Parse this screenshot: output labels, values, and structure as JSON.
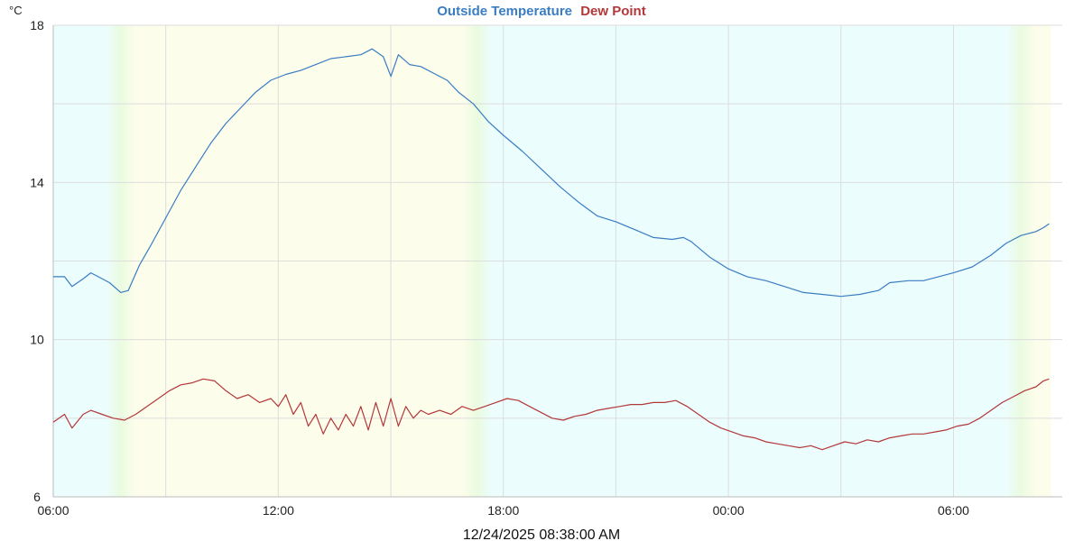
{
  "unit_label": "°C",
  "timestamp": "12/24/2025 08:38:00 AM",
  "colors": {
    "outside_temperature": "#3a7dc2",
    "dew_point": "#b2383a",
    "day_band": "#fdfdec",
    "night_band": "#ecfdfd",
    "grid": "#dddddd"
  },
  "chart_data": {
    "type": "line",
    "title": "",
    "xlabel": "",
    "ylabel": "°C",
    "x_domain_hours": [
      0,
      26.6
    ],
    "ylim": [
      6,
      18
    ],
    "y_ticks": [
      {
        "label": "6",
        "value": 6
      },
      {
        "label": "10",
        "value": 10
      },
      {
        "label": "14",
        "value": 14
      },
      {
        "label": "18",
        "value": 18
      }
    ],
    "x_ticks": [
      {
        "label": "06:00",
        "hour": 0
      },
      {
        "label": "12:00",
        "hour": 6
      },
      {
        "label": "18:00",
        "hour": 12
      },
      {
        "label": "00:00",
        "hour": 18
      },
      {
        "label": "06:00",
        "hour": 24
      }
    ],
    "grid": true,
    "legend_position": "top-center",
    "daylight_bands": [
      {
        "period": "night",
        "start_hour": 0,
        "end_hour": 1.4
      },
      {
        "period": "twilight",
        "start_hour": 1.4,
        "end_hour": 2.2
      },
      {
        "period": "day",
        "start_hour": 2.2,
        "end_hour": 10.9
      },
      {
        "period": "twilight",
        "start_hour": 10.9,
        "end_hour": 11.7
      },
      {
        "period": "night",
        "start_hour": 11.7,
        "end_hour": 25.4
      },
      {
        "period": "twilight",
        "start_hour": 25.4,
        "end_hour": 26.2
      },
      {
        "period": "day",
        "start_hour": 26.2,
        "end_hour": 26.6
      }
    ],
    "series": [
      {
        "name": "Outside Temperature",
        "color": "#3a7dc2",
        "points": [
          [
            0,
            11.6
          ],
          [
            0.3,
            11.6
          ],
          [
            0.5,
            11.35
          ],
          [
            0.8,
            11.55
          ],
          [
            1.0,
            11.7
          ],
          [
            1.2,
            11.6
          ],
          [
            1.5,
            11.45
          ],
          [
            1.8,
            11.2
          ],
          [
            2.0,
            11.25
          ],
          [
            2.3,
            11.9
          ],
          [
            2.6,
            12.4
          ],
          [
            3.0,
            13.1
          ],
          [
            3.4,
            13.8
          ],
          [
            3.8,
            14.4
          ],
          [
            4.2,
            15.0
          ],
          [
            4.6,
            15.5
          ],
          [
            5.0,
            15.9
          ],
          [
            5.4,
            16.3
          ],
          [
            5.8,
            16.6
          ],
          [
            6.2,
            16.75
          ],
          [
            6.6,
            16.85
          ],
          [
            7.0,
            17.0
          ],
          [
            7.4,
            17.15
          ],
          [
            7.8,
            17.2
          ],
          [
            8.2,
            17.25
          ],
          [
            8.5,
            17.4
          ],
          [
            8.8,
            17.2
          ],
          [
            9.0,
            16.7
          ],
          [
            9.2,
            17.25
          ],
          [
            9.5,
            17.0
          ],
          [
            9.8,
            16.95
          ],
          [
            10.2,
            16.75
          ],
          [
            10.5,
            16.6
          ],
          [
            10.8,
            16.3
          ],
          [
            11.2,
            16.0
          ],
          [
            11.6,
            15.55
          ],
          [
            12.0,
            15.2
          ],
          [
            12.5,
            14.8
          ],
          [
            13.0,
            14.35
          ],
          [
            13.5,
            13.9
          ],
          [
            14.0,
            13.5
          ],
          [
            14.5,
            13.15
          ],
          [
            15.0,
            13.0
          ],
          [
            15.5,
            12.8
          ],
          [
            16.0,
            12.6
          ],
          [
            16.5,
            12.55
          ],
          [
            16.8,
            12.6
          ],
          [
            17.0,
            12.5
          ],
          [
            17.5,
            12.1
          ],
          [
            18.0,
            11.8
          ],
          [
            18.5,
            11.6
          ],
          [
            19.0,
            11.5
          ],
          [
            19.5,
            11.35
          ],
          [
            20.0,
            11.2
          ],
          [
            20.5,
            11.15
          ],
          [
            21.0,
            11.1
          ],
          [
            21.5,
            11.15
          ],
          [
            22.0,
            11.25
          ],
          [
            22.3,
            11.45
          ],
          [
            22.8,
            11.5
          ],
          [
            23.2,
            11.5
          ],
          [
            23.6,
            11.6
          ],
          [
            24.0,
            11.7
          ],
          [
            24.5,
            11.85
          ],
          [
            25.0,
            12.15
          ],
          [
            25.4,
            12.45
          ],
          [
            25.8,
            12.65
          ],
          [
            26.2,
            12.75
          ],
          [
            26.4,
            12.85
          ],
          [
            26.55,
            12.95
          ]
        ]
      },
      {
        "name": "Dew Point",
        "color": "#b2383a",
        "points": [
          [
            0,
            7.9
          ],
          [
            0.3,
            8.1
          ],
          [
            0.5,
            7.75
          ],
          [
            0.8,
            8.1
          ],
          [
            1.0,
            8.2
          ],
          [
            1.3,
            8.1
          ],
          [
            1.6,
            8.0
          ],
          [
            1.9,
            7.95
          ],
          [
            2.2,
            8.1
          ],
          [
            2.5,
            8.3
          ],
          [
            2.8,
            8.5
          ],
          [
            3.1,
            8.7
          ],
          [
            3.4,
            8.85
          ],
          [
            3.7,
            8.9
          ],
          [
            4.0,
            9.0
          ],
          [
            4.3,
            8.95
          ],
          [
            4.6,
            8.7
          ],
          [
            4.9,
            8.5
          ],
          [
            5.2,
            8.6
          ],
          [
            5.5,
            8.4
          ],
          [
            5.8,
            8.5
          ],
          [
            6.0,
            8.3
          ],
          [
            6.2,
            8.6
          ],
          [
            6.4,
            8.1
          ],
          [
            6.6,
            8.4
          ],
          [
            6.8,
            7.8
          ],
          [
            7.0,
            8.1
          ],
          [
            7.2,
            7.6
          ],
          [
            7.4,
            8.0
          ],
          [
            7.6,
            7.7
          ],
          [
            7.8,
            8.1
          ],
          [
            8.0,
            7.8
          ],
          [
            8.2,
            8.3
          ],
          [
            8.4,
            7.7
          ],
          [
            8.6,
            8.4
          ],
          [
            8.8,
            7.8
          ],
          [
            9.0,
            8.5
          ],
          [
            9.2,
            7.8
          ],
          [
            9.4,
            8.3
          ],
          [
            9.6,
            8.0
          ],
          [
            9.8,
            8.2
          ],
          [
            10.0,
            8.1
          ],
          [
            10.3,
            8.2
          ],
          [
            10.6,
            8.1
          ],
          [
            10.9,
            8.3
          ],
          [
            11.2,
            8.2
          ],
          [
            11.5,
            8.3
          ],
          [
            11.8,
            8.4
          ],
          [
            12.1,
            8.5
          ],
          [
            12.4,
            8.45
          ],
          [
            12.7,
            8.3
          ],
          [
            13.0,
            8.15
          ],
          [
            13.3,
            8.0
          ],
          [
            13.6,
            7.95
          ],
          [
            13.9,
            8.05
          ],
          [
            14.2,
            8.1
          ],
          [
            14.5,
            8.2
          ],
          [
            14.8,
            8.25
          ],
          [
            15.1,
            8.3
          ],
          [
            15.4,
            8.35
          ],
          [
            15.7,
            8.35
          ],
          [
            16.0,
            8.4
          ],
          [
            16.3,
            8.4
          ],
          [
            16.6,
            8.45
          ],
          [
            16.9,
            8.3
          ],
          [
            17.2,
            8.1
          ],
          [
            17.5,
            7.9
          ],
          [
            17.8,
            7.75
          ],
          [
            18.1,
            7.65
          ],
          [
            18.4,
            7.55
          ],
          [
            18.7,
            7.5
          ],
          [
            19.0,
            7.4
          ],
          [
            19.3,
            7.35
          ],
          [
            19.6,
            7.3
          ],
          [
            19.9,
            7.25
          ],
          [
            20.2,
            7.3
          ],
          [
            20.5,
            7.2
          ],
          [
            20.8,
            7.3
          ],
          [
            21.1,
            7.4
          ],
          [
            21.4,
            7.35
          ],
          [
            21.7,
            7.45
          ],
          [
            22.0,
            7.4
          ],
          [
            22.3,
            7.5
          ],
          [
            22.6,
            7.55
          ],
          [
            22.9,
            7.6
          ],
          [
            23.2,
            7.6
          ],
          [
            23.5,
            7.65
          ],
          [
            23.8,
            7.7
          ],
          [
            24.1,
            7.8
          ],
          [
            24.4,
            7.85
          ],
          [
            24.7,
            8.0
          ],
          [
            25.0,
            8.2
          ],
          [
            25.3,
            8.4
          ],
          [
            25.6,
            8.55
          ],
          [
            25.9,
            8.7
          ],
          [
            26.2,
            8.8
          ],
          [
            26.4,
            8.95
          ],
          [
            26.55,
            9.0
          ]
        ]
      }
    ]
  }
}
